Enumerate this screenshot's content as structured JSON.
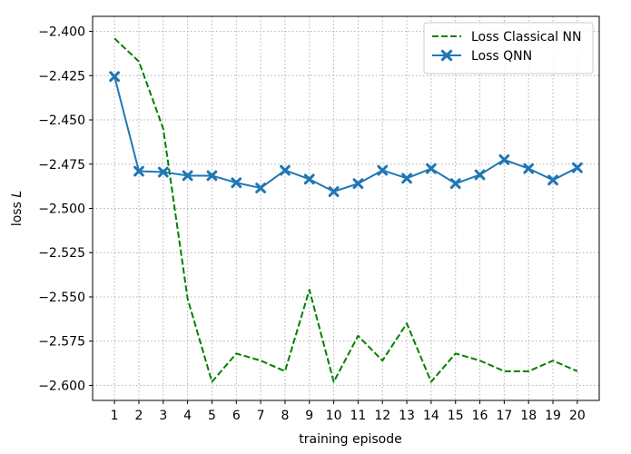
{
  "chart_data": {
    "type": "line",
    "xlabel": "training episode",
    "ylabel_prefix": "loss ",
    "ylabel_symbol": "L",
    "x": [
      1,
      2,
      3,
      4,
      5,
      6,
      7,
      8,
      9,
      10,
      11,
      12,
      13,
      14,
      15,
      16,
      17,
      18,
      19,
      20
    ],
    "x_ticks": [
      "1",
      "2",
      "3",
      "4",
      "5",
      "6",
      "7",
      "8",
      "9",
      "10",
      "11",
      "12",
      "13",
      "14",
      "15",
      "16",
      "17",
      "18",
      "19",
      "20"
    ],
    "y_ticks": [
      "−2.400",
      "−2.425",
      "−2.450",
      "−2.475",
      "−2.500",
      "−2.525",
      "−2.550",
      "−2.575",
      "−2.600"
    ],
    "y_tick_values": [
      -2.4,
      -2.425,
      -2.45,
      -2.475,
      -2.5,
      -2.525,
      -2.55,
      -2.575,
      -2.6
    ],
    "xlim": [
      0.1,
      20.9
    ],
    "ylim": [
      -2.6085,
      -2.3915
    ],
    "grid": true,
    "grid_style": "dotted",
    "legend_position": "top-right",
    "series": [
      {
        "name": "Loss Classical NN",
        "color": "#008000",
        "line_style": "dashed",
        "marker": "none",
        "values": [
          -2.404,
          -2.417,
          -2.455,
          -2.551,
          -2.598,
          -2.582,
          -2.586,
          -2.592,
          -2.546,
          -2.598,
          -2.572,
          -2.586,
          -2.565,
          -2.598,
          -2.582,
          -2.586,
          -2.592,
          -2.592,
          -2.586,
          -2.592
        ]
      },
      {
        "name": "Loss QNN",
        "color": "#1f77b4",
        "line_style": "solid",
        "marker": "X",
        "values": [
          -2.4255,
          -2.479,
          -2.4795,
          -2.4815,
          -2.4815,
          -2.4855,
          -2.4885,
          -2.4785,
          -2.4835,
          -2.4905,
          -2.486,
          -2.4785,
          -2.483,
          -2.4775,
          -2.486,
          -2.481,
          -2.4725,
          -2.4775,
          -2.484,
          -2.477
        ]
      }
    ]
  }
}
